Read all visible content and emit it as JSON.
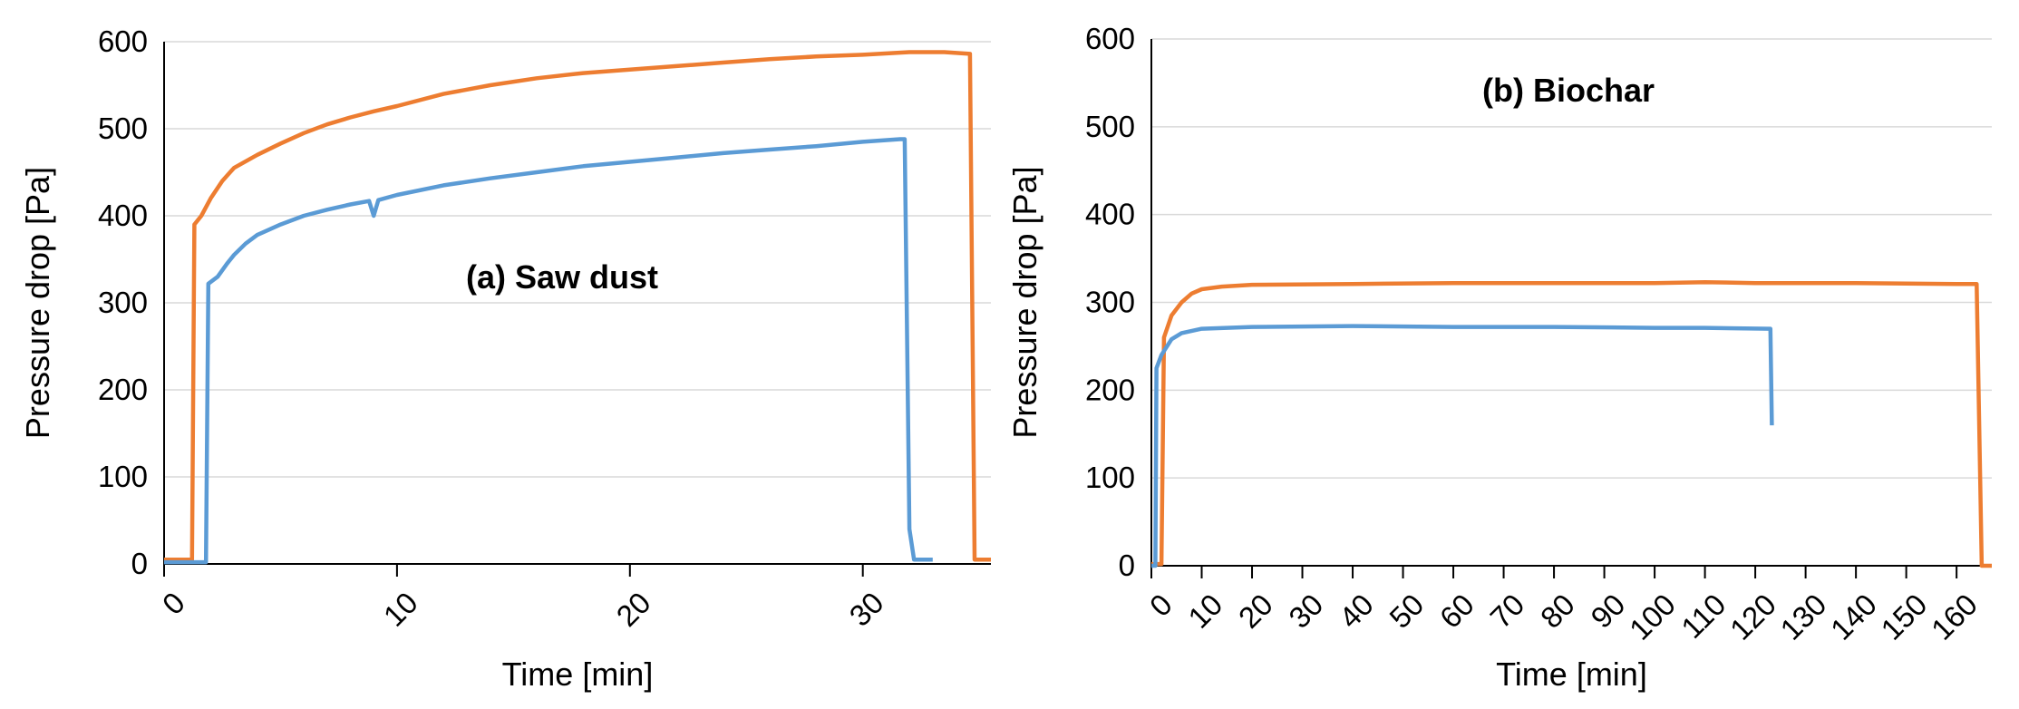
{
  "chart_data": [
    {
      "type": "line",
      "title": "(a) Saw dust",
      "xlabel": "Time [min]",
      "ylabel": "Pressure drop [Pa]",
      "xlim": [
        0,
        35.5
      ],
      "ylim": [
        0,
        600
      ],
      "xticks": [
        0,
        10,
        20,
        30
      ],
      "yticks": [
        0,
        100,
        200,
        300,
        400,
        500,
        600
      ],
      "grid": true,
      "series": [
        {
          "color": "#ED7D31",
          "points": [
            [
              0,
              5
            ],
            [
              1.2,
              5
            ],
            [
              1.3,
              390
            ],
            [
              1.6,
              400
            ],
            [
              2,
              420
            ],
            [
              2.5,
              440
            ],
            [
              3,
              455
            ],
            [
              4,
              470
            ],
            [
              5,
              483
            ],
            [
              6,
              495
            ],
            [
              7,
              505
            ],
            [
              8,
              513
            ],
            [
              9,
              520
            ],
            [
              10,
              526
            ],
            [
              12,
              540
            ],
            [
              14,
              550
            ],
            [
              16,
              558
            ],
            [
              18,
              564
            ],
            [
              20,
              568
            ],
            [
              22,
              572
            ],
            [
              24,
              576
            ],
            [
              26,
              580
            ],
            [
              28,
              583
            ],
            [
              30,
              585
            ],
            [
              32,
              588
            ],
            [
              33.5,
              588
            ],
            [
              34.6,
              586
            ],
            [
              34.8,
              5
            ],
            [
              35.5,
              5
            ]
          ]
        },
        {
          "color": "#5B9BD5",
          "points": [
            [
              0,
              2
            ],
            [
              1.8,
              2
            ],
            [
              1.9,
              322
            ],
            [
              2.3,
              330
            ],
            [
              2.7,
              345
            ],
            [
              3,
              355
            ],
            [
              3.5,
              368
            ],
            [
              4,
              378
            ],
            [
              5,
              390
            ],
            [
              6,
              400
            ],
            [
              7,
              407
            ],
            [
              8,
              413
            ],
            [
              8.8,
              417
            ],
            [
              9,
              400
            ],
            [
              9.2,
              418
            ],
            [
              10,
              424
            ],
            [
              12,
              435
            ],
            [
              14,
              443
            ],
            [
              16,
              450
            ],
            [
              18,
              457
            ],
            [
              20,
              462
            ],
            [
              22,
              467
            ],
            [
              24,
              472
            ],
            [
              26,
              476
            ],
            [
              28,
              480
            ],
            [
              30,
              485
            ],
            [
              31.6,
              488
            ],
            [
              31.8,
              488
            ],
            [
              32,
              40
            ],
            [
              32.2,
              5
            ],
            [
              33,
              5
            ]
          ]
        }
      ]
    },
    {
      "type": "line",
      "title": "(b)  Biochar",
      "xlabel": "Time [min]",
      "ylabel": "Pressure drop [Pa]",
      "xlim": [
        0,
        167
      ],
      "ylim": [
        0,
        600
      ],
      "xticks": [
        0,
        10,
        20,
        30,
        40,
        50,
        60,
        70,
        80,
        90,
        100,
        110,
        120,
        130,
        140,
        150,
        160
      ],
      "yticks": [
        0,
        100,
        200,
        300,
        400,
        500,
        600
      ],
      "grid": true,
      "series": [
        {
          "color": "#ED7D31",
          "points": [
            [
              0,
              2
            ],
            [
              2,
              2
            ],
            [
              2.5,
              260
            ],
            [
              4,
              285
            ],
            [
              6,
              300
            ],
            [
              8,
              310
            ],
            [
              10,
              315
            ],
            [
              14,
              318
            ],
            [
              20,
              320
            ],
            [
              40,
              321
            ],
            [
              60,
              322
            ],
            [
              80,
              322
            ],
            [
              100,
              322
            ],
            [
              110,
              323
            ],
            [
              120,
              322
            ],
            [
              140,
              322
            ],
            [
              160,
              321
            ],
            [
              164,
              321
            ],
            [
              165,
              0
            ],
            [
              167,
              0
            ]
          ]
        },
        {
          "color": "#5B9BD5",
          "points": [
            [
              0,
              0
            ],
            [
              0.8,
              0
            ],
            [
              1,
              225
            ],
            [
              2,
              240
            ],
            [
              4,
              258
            ],
            [
              6,
              265
            ],
            [
              10,
              270
            ],
            [
              20,
              272
            ],
            [
              40,
              273
            ],
            [
              60,
              272
            ],
            [
              80,
              272
            ],
            [
              100,
              271
            ],
            [
              110,
              271
            ],
            [
              123,
              270
            ],
            [
              123.3,
              160
            ]
          ]
        }
      ]
    }
  ]
}
